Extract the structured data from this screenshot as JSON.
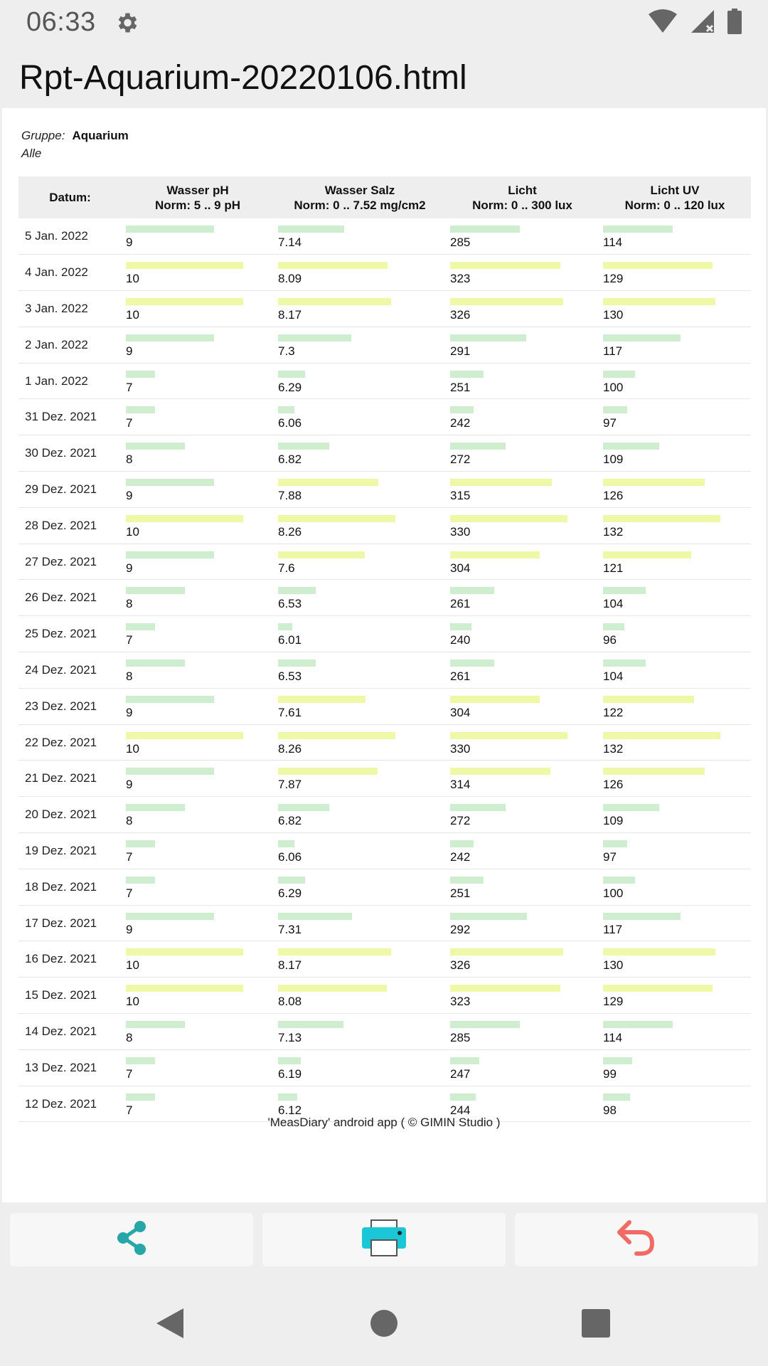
{
  "status_bar": {
    "time": "06:33",
    "icons": [
      "gear-icon",
      "wifi-icon",
      "signal-icon",
      "battery-icon"
    ]
  },
  "title": "Rpt-Aquarium-20220106.html",
  "report": {
    "group_label": "Gruppe:",
    "group_value": "Aquarium",
    "filter": "Alle",
    "columns": [
      {
        "name": "Datum:",
        "norm": ""
      },
      {
        "name": "Wasser pH",
        "norm": "Norm: 5 .. 9 pH"
      },
      {
        "name": "Wasser Salz",
        "norm": "Norm: 0 .. 7.52 mg/cm2"
      },
      {
        "name": "Licht",
        "norm": "Norm: 0 .. 300 lux"
      },
      {
        "name": "Licht UV",
        "norm": "Norm: 0 .. 120 lux"
      }
    ],
    "rows": [
      {
        "date": "5 Jan. 2022",
        "ph": "9",
        "salz": "7.14",
        "licht": "285",
        "uv": "114"
      },
      {
        "date": "4 Jan. 2022",
        "ph": "10",
        "salz": "8.09",
        "licht": "323",
        "uv": "129"
      },
      {
        "date": "3 Jan. 2022",
        "ph": "10",
        "salz": "8.17",
        "licht": "326",
        "uv": "130"
      },
      {
        "date": "2 Jan. 2022",
        "ph": "9",
        "salz": "7.3",
        "licht": "291",
        "uv": "117"
      },
      {
        "date": "1 Jan. 2022",
        "ph": "7",
        "salz": "6.29",
        "licht": "251",
        "uv": "100"
      },
      {
        "date": "31 Dez. 2021",
        "ph": "7",
        "salz": "6.06",
        "licht": "242",
        "uv": "97"
      },
      {
        "date": "30 Dez. 2021",
        "ph": "8",
        "salz": "6.82",
        "licht": "272",
        "uv": "109"
      },
      {
        "date": "29 Dez. 2021",
        "ph": "9",
        "salz": "7.88",
        "licht": "315",
        "uv": "126"
      },
      {
        "date": "28 Dez. 2021",
        "ph": "10",
        "salz": "8.26",
        "licht": "330",
        "uv": "132"
      },
      {
        "date": "27 Dez. 2021",
        "ph": "9",
        "salz": "7.6",
        "licht": "304",
        "uv": "121"
      },
      {
        "date": "26 Dez. 2021",
        "ph": "8",
        "salz": "6.53",
        "licht": "261",
        "uv": "104"
      },
      {
        "date": "25 Dez. 2021",
        "ph": "7",
        "salz": "6.01",
        "licht": "240",
        "uv": "96"
      },
      {
        "date": "24 Dez. 2021",
        "ph": "8",
        "salz": "6.53",
        "licht": "261",
        "uv": "104"
      },
      {
        "date": "23 Dez. 2021",
        "ph": "9",
        "salz": "7.61",
        "licht": "304",
        "uv": "122"
      },
      {
        "date": "22 Dez. 2021",
        "ph": "10",
        "salz": "8.26",
        "licht": "330",
        "uv": "132"
      },
      {
        "date": "21 Dez. 2021",
        "ph": "9",
        "salz": "7.87",
        "licht": "314",
        "uv": "126"
      },
      {
        "date": "20 Dez. 2021",
        "ph": "8",
        "salz": "6.82",
        "licht": "272",
        "uv": "109"
      },
      {
        "date": "19 Dez. 2021",
        "ph": "7",
        "salz": "6.06",
        "licht": "242",
        "uv": "97"
      },
      {
        "date": "18 Dez. 2021",
        "ph": "7",
        "salz": "6.29",
        "licht": "251",
        "uv": "100"
      },
      {
        "date": "17 Dez. 2021",
        "ph": "9",
        "salz": "7.31",
        "licht": "292",
        "uv": "117"
      },
      {
        "date": "16 Dez. 2021",
        "ph": "10",
        "salz": "8.17",
        "licht": "326",
        "uv": "130"
      },
      {
        "date": "15 Dez. 2021",
        "ph": "10",
        "salz": "8.08",
        "licht": "323",
        "uv": "129"
      },
      {
        "date": "14 Dez. 2021",
        "ph": "8",
        "salz": "7.13",
        "licht": "285",
        "uv": "114"
      },
      {
        "date": "13 Dez. 2021",
        "ph": "7",
        "salz": "6.19",
        "licht": "247",
        "uv": "99"
      },
      {
        "date": "12 Dez. 2021",
        "ph": "7",
        "salz": "6.12",
        "licht": "244",
        "uv": "98"
      }
    ],
    "footer": "'MeasDiary' android app ( © GIMIN Studio )"
  },
  "actions": [
    {
      "name": "share-button",
      "icon": "share-icon",
      "color": "#26a6a6"
    },
    {
      "name": "print-button",
      "icon": "printer-icon",
      "color": "#1bc6d6"
    },
    {
      "name": "back-button",
      "icon": "undo-arrow-icon",
      "color": "#f06a66"
    }
  ],
  "nav": [
    "back-triangle-icon",
    "home-circle-icon",
    "recents-square-icon"
  ],
  "colors": {
    "bar_normal": "#cfedcf",
    "bar_high": "#eef8a6",
    "header_bg": "#eeeeee"
  }
}
